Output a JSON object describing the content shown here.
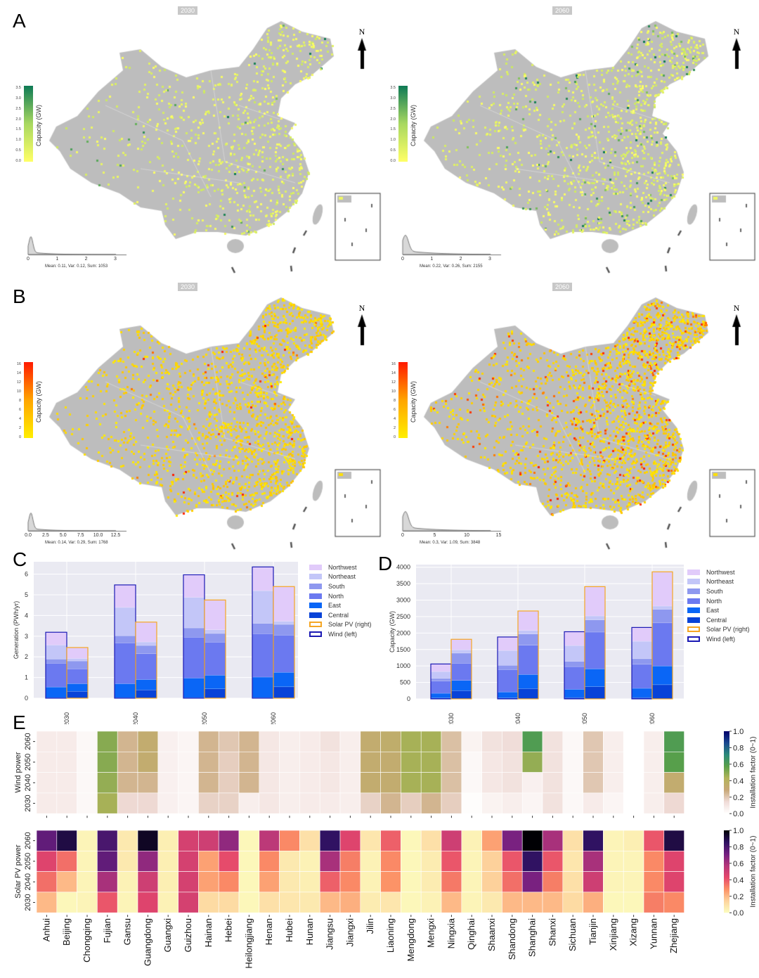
{
  "panels": {
    "A": "A",
    "B": "B",
    "C": "C",
    "D": "D",
    "E": "E"
  },
  "maps": [
    {
      "panel": "A",
      "year": "2030",
      "colorbar_label": "Capacity (GW)",
      "colorbar_ticks": [
        "0.0",
        "0.5",
        "1.0",
        "1.5",
        "2.0",
        "2.5",
        "3.0",
        "3.5"
      ],
      "colormap": [
        "#ffff66",
        "#a8d860",
        "#0e7a55"
      ],
      "hist_ticks": [
        "0",
        "1",
        "2",
        "3"
      ],
      "stats": "Mean: 0.11, Var: 0.12, Sum: 1053",
      "density": 0.35,
      "strong": 0.04
    },
    {
      "panel": "A",
      "year": "2060",
      "colorbar_label": "Capacity (GW)",
      "colorbar_ticks": [
        "0.0",
        "0.5",
        "1.0",
        "1.5",
        "2.0",
        "2.5",
        "3.0",
        "3.5"
      ],
      "colormap": [
        "#ffff66",
        "#a8d860",
        "#0e7a55"
      ],
      "hist_ticks": [
        "0",
        "1",
        "2",
        "3"
      ],
      "stats": "Mean: 0.22, Var: 0.26, Sum: 2155",
      "density": 0.5,
      "strong": 0.1
    },
    {
      "panel": "B",
      "year": "2030",
      "colorbar_label": "Capacity (GW)",
      "colorbar_ticks": [
        "0",
        "2",
        "4",
        "6",
        "8",
        "10",
        "12",
        "14",
        "16"
      ],
      "colormap": [
        "#ffee00",
        "#ffa500",
        "#ff1a00"
      ],
      "hist_ticks": [
        "0.0",
        "2.5",
        "5.0",
        "7.5",
        "10.0",
        "12.5"
      ],
      "stats": "Mean: 0.14, Var: 0.29, Sum: 1768",
      "density": 0.75,
      "strong": 0.02
    },
    {
      "panel": "B",
      "year": "2060",
      "colorbar_label": "Capacity (GW)",
      "colorbar_ticks": [
        "0",
        "2",
        "4",
        "6",
        "8",
        "10",
        "12",
        "14",
        "16"
      ],
      "colormap": [
        "#ffee00",
        "#ffa500",
        "#ff1a00"
      ],
      "hist_ticks": [
        "0",
        "5",
        "10",
        "15"
      ],
      "stats": "Mean: 0.3, Var: 1.09, Sum: 3848",
      "density": 0.85,
      "strong": 0.12
    }
  ],
  "north_label": "N",
  "colors": {
    "map_land": "#bdbdbd",
    "Northwest": "#e1cbfa",
    "Northeast": "#c3c6f8",
    "South": "#8e98ef",
    "North": "#6b79f0",
    "East": "#0a66f6",
    "Central": "#0843d8",
    "solar_outline": "#f5a623",
    "wind_outline": "#1b1ab4",
    "plot_bg": "#eaeaf2"
  },
  "chart_data": [
    {
      "type": "bar",
      "panel": "C",
      "stacked": true,
      "ylabel": "Generation (PWh/yr)",
      "ylim": [
        0,
        6.6
      ],
      "yticks": [
        0,
        1,
        2,
        3,
        4,
        5,
        6
      ],
      "categories": [
        "2030",
        "2040",
        "2050",
        "2060"
      ],
      "regions": [
        "Central",
        "East",
        "North",
        "South",
        "Northeast",
        "Northwest"
      ],
      "legend": [
        "Northwest",
        "Northeast",
        "South",
        "North",
        "East",
        "Central",
        "Solar PV (right)",
        "Wind (left)"
      ],
      "legend_position": "right",
      "grid": true,
      "series": [
        {
          "name": "Wind (left)",
          "values": {
            "Central": [
              0.02,
              0.02,
              0.02,
              0.02
            ],
            "East": [
              0.52,
              0.68,
              0.95,
              1.0
            ],
            "North": [
              1.15,
              1.97,
              1.98,
              2.1
            ],
            "South": [
              0.2,
              0.35,
              0.45,
              0.5
            ],
            "Northeast": [
              0.68,
              1.37,
              1.48,
              1.58
            ],
            "Northwest": [
              0.62,
              1.09,
              1.09,
              1.15
            ]
          }
        },
        {
          "name": "Solar PV (right)",
          "values": {
            "Central": [
              0.33,
              0.4,
              0.45,
              0.55
            ],
            "East": [
              0.37,
              0.5,
              0.66,
              0.7
            ],
            "North": [
              0.72,
              1.25,
              1.6,
              1.8
            ],
            "South": [
              0.38,
              0.4,
              0.42,
              0.52
            ],
            "Northeast": [
              0.12,
              0.17,
              0.18,
              0.15
            ],
            "Northwest": [
              0.53,
              0.96,
              1.44,
              1.68
            ]
          }
        }
      ]
    },
    {
      "type": "bar",
      "panel": "D",
      "stacked": true,
      "ylabel": "Capacity (GW)",
      "ylim": [
        0,
        4080
      ],
      "yticks": [
        0,
        500,
        1000,
        1500,
        2000,
        2500,
        3000,
        3500,
        4000
      ],
      "categories": [
        "2030",
        "2040",
        "2050",
        "2060"
      ],
      "regions": [
        "Central",
        "East",
        "North",
        "South",
        "Northeast",
        "Northwest"
      ],
      "legend": [
        "Northwest",
        "Northeast",
        "South",
        "North",
        "East",
        "Central",
        "Solar PV (right)",
        "Wind (left)"
      ],
      "legend_position": "right",
      "grid": true,
      "series": [
        {
          "name": "Wind (left)",
          "values": {
            "Central": [
              30,
              30,
              40,
              40
            ],
            "East": [
              140,
              180,
              250,
              280
            ],
            "North": [
              370,
              680,
              690,
              730
            ],
            "South": [
              80,
              130,
              160,
              170
            ],
            "Northeast": [
              210,
              450,
              480,
              530
            ],
            "Northwest": [
              230,
              410,
              420,
              420
            ]
          }
        },
        {
          "name": "Solar PV (right)",
          "values": {
            "Central": [
              250,
              310,
              370,
              430
            ],
            "East": [
              310,
              430,
              540,
              570
            ],
            "North": [
              520,
              890,
              1120,
              1310
            ],
            "South": [
              310,
              340,
              370,
              410
            ],
            "Northeast": [
              100,
              110,
              120,
              100
            ],
            "Northwest": [
              320,
              590,
              890,
              1040
            ]
          }
        }
      ]
    },
    {
      "type": "heatmap",
      "panel": "E",
      "provinces": [
        "Anhui",
        "Beijing",
        "Chongqing",
        "Fujian",
        "Gansu",
        "Guangdong",
        "Guangxi",
        "Guizhou",
        "Hainan",
        "Hebei",
        "Heilongjiang",
        "Henan",
        "Hubei",
        "Hunan",
        "Jiangsu",
        "Jiangxi",
        "Jilin",
        "Liaoning",
        "Mengdong",
        "Mengxi",
        "Ningxia",
        "Qinghai",
        "Shaanxi",
        "Shandong",
        "Shanghai",
        "Shanxi",
        "Sichuan",
        "Tianjin",
        "Xinjiang",
        "Xizang",
        "Yunnan",
        "Zhejiang"
      ],
      "rows": [
        "2060",
        "2050",
        "2040",
        "2030"
      ],
      "colorbar_label": "Installation factor (0~1)",
      "colorbar_ticks": [
        "0.0",
        "0.2",
        "0.4",
        "0.6",
        "0.8",
        "1.0"
      ],
      "range": [
        0,
        1
      ],
      "blocks": [
        {
          "ylabel": "Wind power",
          "colormap": "gist_earth_r",
          "values": [
            [
              0.08,
              0.08,
              0.03,
              0.5,
              0.25,
              0.33,
              0.06,
              0.04,
              0.25,
              0.2,
              0.25,
              0.1,
              0.07,
              0.08,
              0.12,
              0.07,
              0.33,
              0.35,
              0.45,
              0.45,
              0.22,
              0.05,
              0.12,
              0.14,
              0.6,
              0.12,
              0.03,
              0.2,
              0.07,
              0.0,
              0.07,
              0.6
            ],
            [
              0.08,
              0.08,
              0.03,
              0.5,
              0.25,
              0.33,
              0.06,
              0.04,
              0.25,
              0.18,
              0.25,
              0.1,
              0.07,
              0.08,
              0.1,
              0.07,
              0.33,
              0.33,
              0.45,
              0.45,
              0.22,
              0.03,
              0.1,
              0.12,
              0.48,
              0.12,
              0.03,
              0.2,
              0.07,
              0.0,
              0.07,
              0.58
            ],
            [
              0.08,
              0.08,
              0.03,
              0.48,
              0.25,
              0.25,
              0.06,
              0.04,
              0.25,
              0.18,
              0.25,
              0.1,
              0.07,
              0.08,
              0.1,
              0.07,
              0.33,
              0.33,
              0.45,
              0.45,
              0.22,
              0.03,
              0.1,
              0.12,
              0.06,
              0.12,
              0.03,
              0.2,
              0.07,
              0.0,
              0.07,
              0.33
            ],
            [
              0.08,
              0.08,
              0.03,
              0.45,
              0.15,
              0.15,
              0.06,
              0.04,
              0.17,
              0.17,
              0.07,
              0.1,
              0.07,
              0.08,
              0.08,
              0.07,
              0.17,
              0.25,
              0.18,
              0.25,
              0.18,
              0.01,
              0.05,
              0.07,
              0.04,
              0.12,
              0.03,
              0.08,
              0.04,
              0.0,
              0.07,
              0.15
            ]
          ]
        },
        {
          "ylabel": "Solar PV power",
          "colormap": "magma_r",
          "values": [
            [
              0.75,
              0.9,
              0.03,
              0.8,
              0.07,
              0.95,
              0.05,
              0.48,
              0.5,
              0.65,
              0.02,
              0.55,
              0.3,
              0.1,
              0.85,
              0.45,
              0.08,
              0.38,
              0.02,
              0.1,
              0.5,
              0.04,
              0.25,
              0.7,
              1.0,
              0.6,
              0.1,
              0.85,
              0.03,
              0.05,
              0.4,
              0.9
            ],
            [
              0.45,
              0.35,
              0.03,
              0.75,
              0.07,
              0.65,
              0.05,
              0.48,
              0.25,
              0.42,
              0.02,
              0.3,
              0.07,
              0.04,
              0.6,
              0.32,
              0.04,
              0.3,
              0.02,
              0.06,
              0.4,
              0.03,
              0.15,
              0.4,
              0.85,
              0.4,
              0.08,
              0.6,
              0.03,
              0.03,
              0.3,
              0.45
            ],
            [
              0.35,
              0.2,
              0.03,
              0.6,
              0.04,
              0.5,
              0.05,
              0.48,
              0.25,
              0.3,
              0.02,
              0.25,
              0.07,
              0.05,
              0.38,
              0.3,
              0.04,
              0.28,
              0.02,
              0.06,
              0.33,
              0.03,
              0.15,
              0.35,
              0.7,
              0.32,
              0.1,
              0.5,
              0.03,
              0.03,
              0.3,
              0.45
            ],
            [
              0.2,
              0.02,
              0.03,
              0.4,
              0.03,
              0.45,
              0.04,
              0.48,
              0.12,
              0.12,
              0.02,
              0.1,
              0.08,
              0.07,
              0.2,
              0.22,
              0.06,
              0.08,
              0.02,
              0.04,
              0.2,
              0.03,
              0.07,
              0.2,
              0.2,
              0.2,
              0.12,
              0.22,
              0.02,
              0.02,
              0.32,
              0.3
            ]
          ]
        }
      ]
    }
  ]
}
